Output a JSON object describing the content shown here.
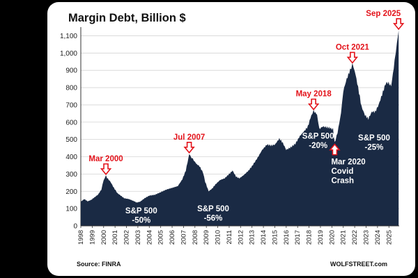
{
  "chart_data": {
    "type": "area",
    "title": "Margin Debt, Billion $",
    "ylabel": "Billion $",
    "ylim": [
      0,
      1150
    ],
    "yticks": [
      "0",
      "100",
      "200",
      "300",
      "400",
      "500",
      "600",
      "700",
      "800",
      "900",
      "1,000",
      "1,100"
    ],
    "ytick_values": [
      0,
      100,
      200,
      300,
      400,
      500,
      600,
      700,
      800,
      900,
      1000,
      1100
    ],
    "xlim": [
      1998,
      2025.9
    ],
    "xticks": [
      "1998",
      "1999",
      "2000",
      "2001",
      "2002",
      "2003",
      "2004",
      "2005",
      "2006",
      "2007",
      "2008",
      "2009",
      "2010",
      "2011",
      "2012",
      "2013",
      "2014",
      "2015",
      "2016",
      "2017",
      "2018",
      "2019",
      "2020",
      "2021",
      "2022",
      "2023",
      "2024",
      "2025"
    ],
    "fill_color": "#1a2a44",
    "accent_color": "#e3121a",
    "series": [
      {
        "name": "Margin Debt",
        "points": [
          [
            1998.0,
            140
          ],
          [
            1998.3,
            155
          ],
          [
            1998.6,
            142
          ],
          [
            1998.9,
            150
          ],
          [
            1999.2,
            165
          ],
          [
            1999.5,
            180
          ],
          [
            1999.8,
            210
          ],
          [
            2000.0,
            265
          ],
          [
            2000.2,
            290
          ],
          [
            2000.3,
            278
          ],
          [
            2000.6,
            255
          ],
          [
            2000.9,
            220
          ],
          [
            2001.2,
            190
          ],
          [
            2001.5,
            175
          ],
          [
            2001.8,
            160
          ],
          [
            2002.2,
            155
          ],
          [
            2002.6,
            145
          ],
          [
            2002.9,
            135
          ],
          [
            2003.2,
            140
          ],
          [
            2003.6,
            160
          ],
          [
            2004.0,
            175
          ],
          [
            2004.5,
            180
          ],
          [
            2005.0,
            195
          ],
          [
            2005.5,
            210
          ],
          [
            2006.0,
            220
          ],
          [
            2006.5,
            230
          ],
          [
            2006.9,
            270
          ],
          [
            2007.2,
            320
          ],
          [
            2007.5,
            415
          ],
          [
            2007.7,
            395
          ],
          [
            2007.9,
            380
          ],
          [
            2008.1,
            360
          ],
          [
            2008.4,
            345
          ],
          [
            2008.7,
            310
          ],
          [
            2008.9,
            255
          ],
          [
            2009.2,
            200
          ],
          [
            2009.5,
            215
          ],
          [
            2009.8,
            240
          ],
          [
            2010.2,
            265
          ],
          [
            2010.6,
            275
          ],
          [
            2011.0,
            300
          ],
          [
            2011.3,
            320
          ],
          [
            2011.6,
            285
          ],
          [
            2011.9,
            275
          ],
          [
            2012.3,
            295
          ],
          [
            2012.7,
            320
          ],
          [
            2013.0,
            345
          ],
          [
            2013.5,
            395
          ],
          [
            2013.9,
            440
          ],
          [
            2014.3,
            470
          ],
          [
            2014.7,
            465
          ],
          [
            2015.0,
            470
          ],
          [
            2015.4,
            505
          ],
          [
            2015.7,
            480
          ],
          [
            2016.0,
            440
          ],
          [
            2016.4,
            455
          ],
          [
            2016.8,
            475
          ],
          [
            2017.2,
            520
          ],
          [
            2017.6,
            550
          ],
          [
            2017.9,
            575
          ],
          [
            2018.2,
            640
          ],
          [
            2018.4,
            665
          ],
          [
            2018.7,
            645
          ],
          [
            2018.9,
            560
          ],
          [
            2019.2,
            575
          ],
          [
            2019.6,
            570
          ],
          [
            2019.9,
            565
          ],
          [
            2020.1,
            560
          ],
          [
            2020.25,
            480
          ],
          [
            2020.5,
            540
          ],
          [
            2020.8,
            650
          ],
          [
            2021.0,
            780
          ],
          [
            2021.3,
            850
          ],
          [
            2021.6,
            900
          ],
          [
            2021.8,
            935
          ],
          [
            2022.0,
            900
          ],
          [
            2022.3,
            800
          ],
          [
            2022.6,
            690
          ],
          [
            2022.9,
            640
          ],
          [
            2023.2,
            620
          ],
          [
            2023.5,
            660
          ],
          [
            2023.8,
            660
          ],
          [
            2024.1,
            700
          ],
          [
            2024.4,
            760
          ],
          [
            2024.7,
            820
          ],
          [
            2024.9,
            830
          ],
          [
            2025.2,
            810
          ],
          [
            2025.5,
            950
          ],
          [
            2025.7,
            1060
          ],
          [
            2025.85,
            1130
          ]
        ]
      }
    ],
    "annotations": {
      "peaks": [
        {
          "label": "Mar 2000",
          "x": 2000.2,
          "y": 290
        },
        {
          "label": "Jul 2007",
          "x": 2007.5,
          "y": 415
        },
        {
          "label": "May 2018",
          "x": 2018.4,
          "y": 665
        },
        {
          "label": "Oct 2021",
          "x": 2021.8,
          "y": 935
        },
        {
          "label": "Sep 2025",
          "x": 2025.85,
          "y": 1130
        }
      ],
      "covid": {
        "lines": [
          "Mar 2020",
          "Covid",
          "Crash"
        ],
        "x": 2020.25,
        "y": 480
      },
      "declines": [
        {
          "lines": [
            "S&P 500",
            "-50%"
          ],
          "x": 2003.3,
          "y": 72
        },
        {
          "lines": [
            "S&P 500",
            "-56%"
          ],
          "x": 2009.6,
          "y": 85
        },
        {
          "lines": [
            "S&P 500",
            "-20%"
          ],
          "x": 2018.8,
          "y": 505
        },
        {
          "lines": [
            "S&P 500",
            "-25%"
          ],
          "x": 2023.7,
          "y": 495
        }
      ]
    },
    "source": "Source: FINRA",
    "brand": "WOLFSTREET.com"
  }
}
